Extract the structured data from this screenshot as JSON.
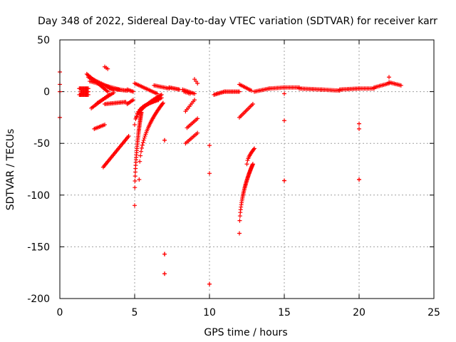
{
  "chart_data": {
    "type": "scatter",
    "title": "Day 348 of 2022, Sidereal Day-to-day VTEC variation (SDTVAR) for receiver karr",
    "xlabel": "GPS time / hours",
    "ylabel": "SDTVAR / TECUs",
    "xlim": [
      0,
      25
    ],
    "ylim": [
      -200,
      50
    ],
    "xticks": [
      0,
      5,
      10,
      15,
      20,
      25
    ],
    "yticks": [
      -200,
      -150,
      -100,
      -50,
      0,
      50
    ],
    "grid": true,
    "marker": "+",
    "series": [
      {
        "name": "SDTVAR",
        "color": "#ff0000",
        "segments": [
          {
            "x0": 0.0,
            "y0": 19,
            "x1": 0.0,
            "y1": 19,
            "n": 1
          },
          {
            "x0": 0.0,
            "y0": 7,
            "x1": 0.0,
            "y1": 7,
            "n": 1
          },
          {
            "x0": 0.0,
            "y0": 0,
            "x1": 0.0,
            "y1": 0,
            "n": 1
          },
          {
            "x0": 0.0,
            "y0": -25,
            "x1": 0.0,
            "y1": -25,
            "n": 1
          },
          {
            "x0": 1.3,
            "y0": 3,
            "x1": 1.9,
            "y1": 3,
            "n": 12
          },
          {
            "x0": 1.3,
            "y0": -3,
            "x1": 1.9,
            "y1": -3,
            "n": 12
          },
          {
            "x0": 1.4,
            "y0": 0,
            "x1": 1.9,
            "y1": 0,
            "n": 10
          },
          {
            "x0": 1.8,
            "y0": 17,
            "x1": 3.2,
            "y1": 0,
            "n": 22
          },
          {
            "x0": 1.9,
            "y0": 14,
            "x1": 3.6,
            "y1": 2,
            "n": 22
          },
          {
            "x0": 2.0,
            "y0": 10,
            "x1": 4.0,
            "y1": 2,
            "n": 22
          },
          {
            "x0": 2.1,
            "y0": -16,
            "x1": 3.3,
            "y1": -3,
            "n": 16
          },
          {
            "x0": 2.5,
            "y0": -11,
            "x1": 3.6,
            "y1": -1,
            "n": 14
          },
          {
            "x0": 2.3,
            "y0": -36,
            "x1": 3.0,
            "y1": -32,
            "n": 9
          },
          {
            "x0": 3.0,
            "y0": 24,
            "x1": 3.2,
            "y1": 22,
            "n": 3
          },
          {
            "x0": 3.0,
            "y0": -12,
            "x1": 4.4,
            "y1": -10,
            "n": 18
          },
          {
            "x0": 3.3,
            "y0": 3,
            "x1": 4.5,
            "y1": 1,
            "n": 16
          },
          {
            "x0": 4.5,
            "y0": 2,
            "x1": 4.9,
            "y1": 0,
            "n": 6
          },
          {
            "x0": 4.5,
            "y0": -12,
            "x1": 4.9,
            "y1": -8,
            "n": 6
          },
          {
            "x0": 2.9,
            "y0": -73,
            "x1": 4.6,
            "y1": -43,
            "n": 28
          },
          {
            "x0": 5.0,
            "y0": 8,
            "x1": 6.5,
            "y1": -2,
            "n": 18
          },
          {
            "x0": 6.3,
            "y0": 6,
            "x1": 7.3,
            "y1": 3,
            "n": 12
          },
          {
            "x0": 7.3,
            "y0": 4,
            "x1": 8.0,
            "y1": 2,
            "n": 10
          },
          {
            "x0": 8.2,
            "y0": 2,
            "x1": 9.0,
            "y1": -2,
            "n": 10
          },
          {
            "x0": 8.3,
            "y0": 0,
            "x1": 8.7,
            "y1": -2,
            "n": 5
          },
          {
            "x0": 9.0,
            "y0": 12,
            "x1": 9.2,
            "y1": 8,
            "n": 3
          },
          {
            "x0": 8.4,
            "y0": -19,
            "x1": 9.0,
            "y1": -8,
            "n": 8
          },
          {
            "x0": 8.5,
            "y0": -35,
            "x1": 9.2,
            "y1": -26,
            "n": 9
          },
          {
            "x0": 8.4,
            "y0": -50,
            "x1": 9.2,
            "y1": -40,
            "n": 10
          },
          {
            "x0": 10.3,
            "y0": -3,
            "x1": 11.0,
            "y1": 0,
            "n": 10
          },
          {
            "x0": 11.0,
            "y0": 0,
            "x1": 12.0,
            "y1": 0,
            "n": 14
          },
          {
            "x0": 12.0,
            "y0": 7,
            "x1": 12.8,
            "y1": 1,
            "n": 10
          },
          {
            "x0": 12.0,
            "y0": -25,
            "x1": 12.9,
            "y1": -12,
            "n": 12
          },
          {
            "x0": 13.0,
            "y0": 0,
            "x1": 14.0,
            "y1": 3,
            "n": 12
          },
          {
            "x0": 14.0,
            "y0": 3,
            "x1": 15.0,
            "y1": 4,
            "n": 12
          },
          {
            "x0": 15.0,
            "y0": 4,
            "x1": 16.0,
            "y1": 4,
            "n": 12
          },
          {
            "x0": 16.0,
            "y0": 3,
            "x1": 17.5,
            "y1": 2,
            "n": 18
          },
          {
            "x0": 17.5,
            "y0": 2,
            "x1": 18.7,
            "y1": 1,
            "n": 14
          },
          {
            "x0": 18.7,
            "y0": 2,
            "x1": 20.0,
            "y1": 3,
            "n": 16
          },
          {
            "x0": 20.0,
            "y0": 3,
            "x1": 21.0,
            "y1": 3,
            "n": 12
          },
          {
            "x0": 21.0,
            "y0": 4,
            "x1": 22.0,
            "y1": 8,
            "n": 12
          },
          {
            "x0": 22.0,
            "y0": 9,
            "x1": 22.8,
            "y1": 6,
            "n": 10
          },
          {
            "x0": 22.0,
            "y0": 14,
            "x1": 22.0,
            "y1": 14,
            "n": 1
          },
          {
            "x0": 15.0,
            "y0": -2,
            "x1": 15.0,
            "y1": -2,
            "n": 1
          },
          {
            "x0": 15.0,
            "y0": -28,
            "x1": 15.0,
            "y1": -28,
            "n": 1
          },
          {
            "x0": 15.0,
            "y0": -86,
            "x1": 15.0,
            "y1": -86,
            "n": 2
          },
          {
            "x0": 20.0,
            "y0": -31,
            "x1": 20.0,
            "y1": -31,
            "n": 1
          },
          {
            "x0": 20.0,
            "y0": -36,
            "x1": 20.0,
            "y1": -36,
            "n": 1
          },
          {
            "x0": 20.0,
            "y0": -85,
            "x1": 20.0,
            "y1": -85,
            "n": 2
          },
          {
            "x0": 10.0,
            "y0": -52,
            "x1": 10.0,
            "y1": -52,
            "n": 1
          },
          {
            "x0": 10.0,
            "y0": -79,
            "x1": 10.0,
            "y1": -79,
            "n": 1
          },
          {
            "x0": 10.0,
            "y0": -186,
            "x1": 10.0,
            "y1": -186,
            "n": 2
          },
          {
            "x0": 7.0,
            "y0": -47,
            "x1": 7.0,
            "y1": -47,
            "n": 2
          },
          {
            "x0": 7.0,
            "y0": -157,
            "x1": 7.0,
            "y1": -157,
            "n": 3
          },
          {
            "x0": 7.0,
            "y0": -176,
            "x1": 7.0,
            "y1": -176,
            "n": 2
          }
        ],
        "curves": [
          {
            "x0": 5.0,
            "x1": 5.45,
            "y0": -110,
            "y1": -20,
            "p": 0.45,
            "n": 40
          },
          {
            "x0": 5.3,
            "x1": 6.9,
            "y0": -85,
            "y1": -11,
            "p": 0.4,
            "n": 38
          },
          {
            "x0": 5.0,
            "x1": 6.8,
            "y0": -32,
            "y1": -3,
            "p": 0.5,
            "n": 28
          },
          {
            "x0": 5.1,
            "x1": 6.8,
            "y0": -25,
            "y1": -6,
            "p": 0.5,
            "n": 24
          },
          {
            "x0": 5.3,
            "x1": 6.6,
            "y0": -20,
            "y1": -8,
            "p": 0.5,
            "n": 20
          },
          {
            "x0": 12.0,
            "x1": 12.9,
            "y0": -137,
            "y1": -70,
            "p": 0.45,
            "n": 44
          },
          {
            "x0": 12.5,
            "x1": 13.0,
            "y0": -70,
            "y1": -55,
            "p": 0.6,
            "n": 12
          }
        ]
      }
    ]
  }
}
